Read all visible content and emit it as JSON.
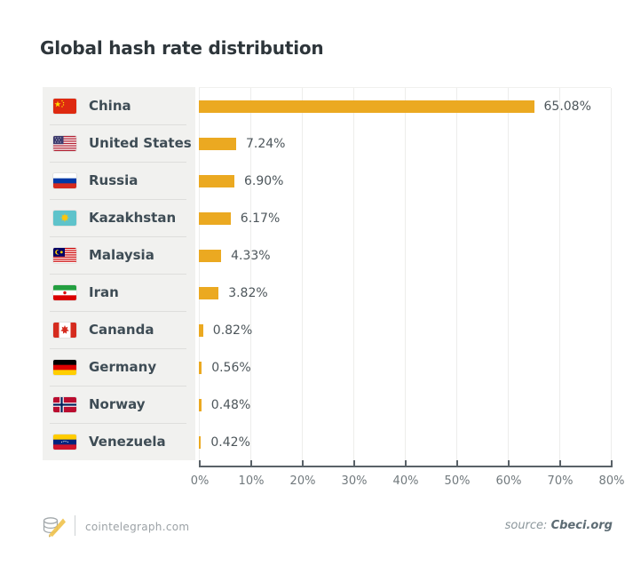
{
  "title": "Global hash rate distribution",
  "footer": {
    "site": "cointelegraph.com",
    "source_prefix": "source:",
    "source_name": "Cbeci.org",
    "logo_icon": "cointelegraph-coins-logo"
  },
  "colors": {
    "bar": "#EBA921",
    "panel_bg": "#F1F1EF",
    "row_divider": "#DEDEDC",
    "title_text": "#2E363B",
    "country_text": "#3E4C55",
    "value_text": "#4D565B",
    "axis_text": "#71797D",
    "axis_line": "#5A6268",
    "gridline": "#EDEDEB"
  },
  "chart_data": {
    "type": "bar",
    "orientation": "horizontal",
    "title": "Global hash rate distribution",
    "categories": [
      "China",
      "United States",
      "Russia",
      "Kazakhstan",
      "Malaysia",
      "Iran",
      "Cananda",
      "Germany",
      "Norway",
      "Venezuela"
    ],
    "values": [
      65.08,
      7.24,
      6.9,
      6.17,
      4.33,
      3.82,
      0.82,
      0.56,
      0.48,
      0.42
    ],
    "value_labels": [
      "65.08%",
      "7.24%",
      "6.90%",
      "6.17%",
      "4.33%",
      "3.82%",
      "0.82%",
      "0.56%",
      "0.48%",
      "0.42%"
    ],
    "flags": [
      "cn",
      "us",
      "ru",
      "kz",
      "my",
      "ir",
      "ca",
      "de",
      "no",
      "ve"
    ],
    "xlabel": "",
    "ylabel": "",
    "xlim": [
      0,
      80
    ],
    "x_ticks": [
      "0%",
      "10%",
      "20%",
      "30%",
      "40%",
      "50%",
      "60%",
      "70%",
      "80%"
    ],
    "grid": true,
    "legend": false,
    "bar_color": "#EBA921",
    "source": "Cbeci.org"
  }
}
